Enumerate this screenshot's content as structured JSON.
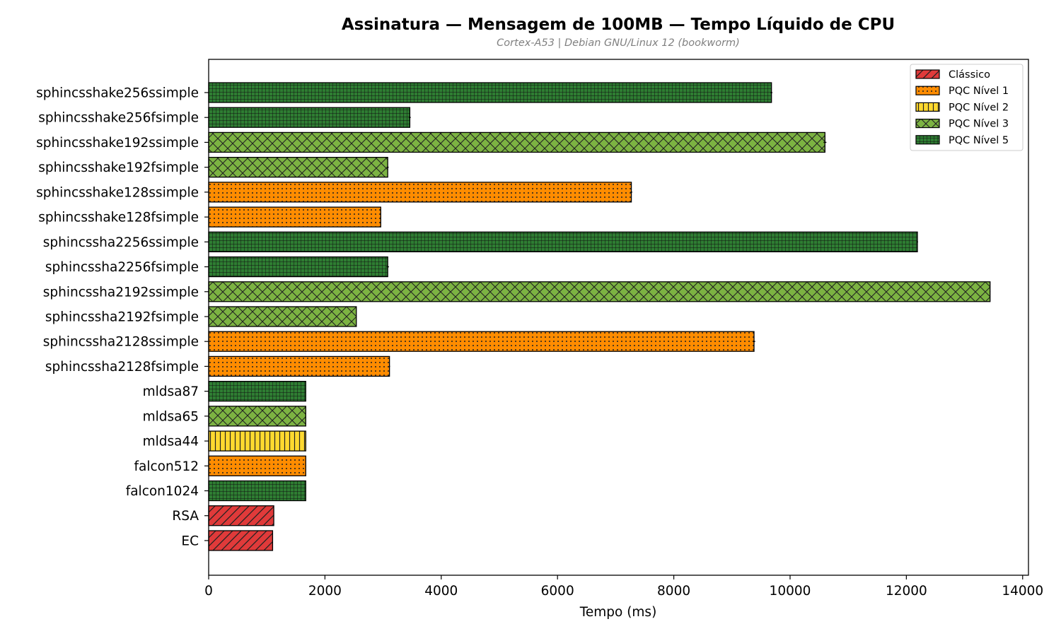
{
  "chart_data": {
    "type": "bar",
    "orientation": "horizontal",
    "title": "Assinatura — Mensagem de 100MB — Tempo Líquido de CPU",
    "subtitle": "Cortex-A53 | Debian GNU/Linux 12 (bookworm)",
    "xlabel": "Tempo (ms)",
    "ylabel": "",
    "xlim": [
      0,
      14100
    ],
    "xticks": [
      "0",
      "2000",
      "4000",
      "6000",
      "8000",
      "10000",
      "12000",
      "14000"
    ],
    "xtick_values": [
      0,
      2000,
      4000,
      6000,
      8000,
      10000,
      12000,
      14000
    ],
    "grid": false,
    "legend_position": "top-right",
    "categories": [
      "sphincsshake256ssimple",
      "sphincsshake256fsimple",
      "sphincsshake192ssimple",
      "sphincsshake192fsimple",
      "sphincsshake128ssimple",
      "sphincsshake128fsimple",
      "sphincssha2256ssimple",
      "sphincssha2256fsimple",
      "sphincssha2192ssimple",
      "sphincssha2192fsimple",
      "sphincssha2128ssimple",
      "sphincssha2128fsimple",
      "mldsa87",
      "mldsa65",
      "mldsa44",
      "falcon512",
      "falcon1024",
      "RSA",
      "EC"
    ],
    "values": [
      9680,
      3460,
      10600,
      3080,
      7270,
      2960,
      12190,
      3080,
      13440,
      2540,
      9380,
      3110,
      1670,
      1670,
      1670,
      1670,
      1670,
      1120,
      1100
    ],
    "errors": [
      15,
      15,
      25,
      15,
      15,
      5,
      10,
      20,
      5,
      5,
      20,
      10,
      5,
      5,
      5,
      5,
      5,
      5,
      5
    ],
    "groups": [
      "PQC Nível 5",
      "PQC Nível 5",
      "PQC Nível 3",
      "PQC Nível 3",
      "PQC Nível 1",
      "PQC Nível 1",
      "PQC Nível 5",
      "PQC Nível 5",
      "PQC Nível 3",
      "PQC Nível 3",
      "PQC Nível 1",
      "PQC Nível 1",
      "PQC Nível 5",
      "PQC Nível 3",
      "PQC Nível 2",
      "PQC Nível 1",
      "PQC Nível 5",
      "Clássico",
      "Clássico"
    ],
    "legend": [
      {
        "label": "Clássico",
        "color": "#e03a3a",
        "hatch": "diagonal"
      },
      {
        "label": "PQC Nível 1",
        "color": "#ff8c00",
        "hatch": "dots"
      },
      {
        "label": "PQC Nível 2",
        "color": "#ffd92f",
        "hatch": "vertical"
      },
      {
        "label": "PQC Nível 3",
        "color": "#7cb342",
        "hatch": "cross"
      },
      {
        "label": "PQC Nível 5",
        "color": "#2e7d32",
        "hatch": "grid"
      }
    ]
  }
}
